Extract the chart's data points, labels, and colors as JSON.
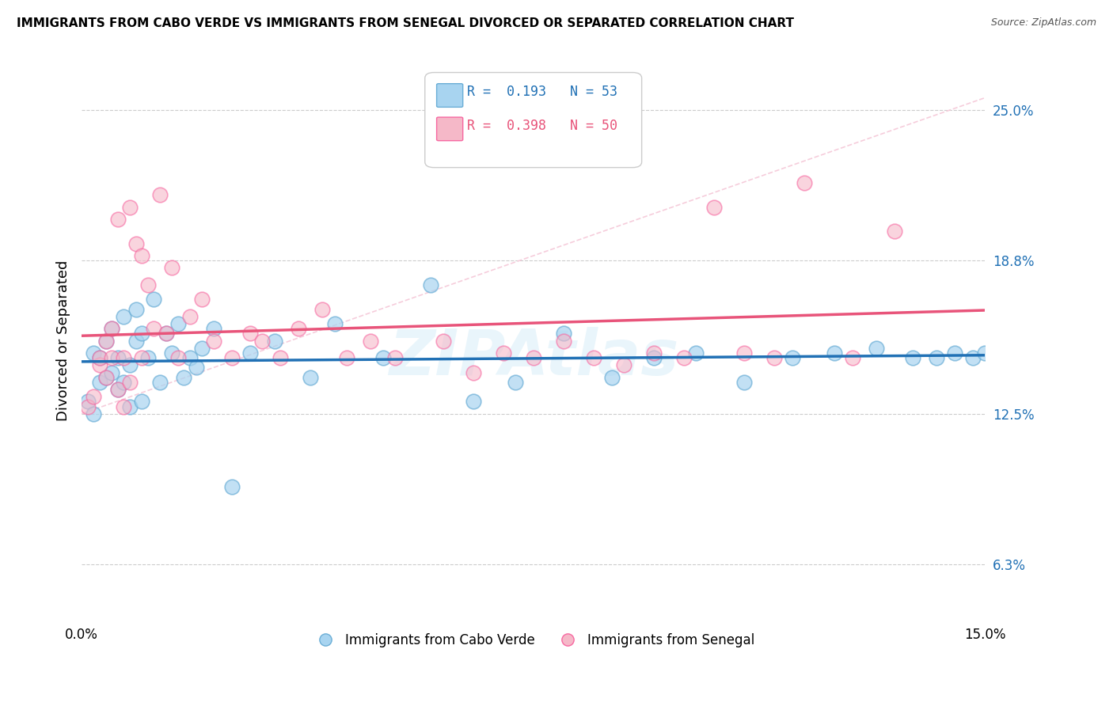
{
  "title": "IMMIGRANTS FROM CABO VERDE VS IMMIGRANTS FROM SENEGAL DIVORCED OR SEPARATED CORRELATION CHART",
  "source": "Source: ZipAtlas.com",
  "ylabel": "Divorced or Separated",
  "xmin": 0.0,
  "xmax": 0.15,
  "ymin": 0.04,
  "ymax": 0.27,
  "ytick_vals": [
    0.063,
    0.125,
    0.188,
    0.25
  ],
  "ytick_labels": [
    "6.3%",
    "12.5%",
    "18.8%",
    "25.0%"
  ],
  "watermark": "ZIPAtlas",
  "R_cabo": "0.193",
  "N_cabo": "53",
  "R_senegal": "0.398",
  "N_senegal": "50",
  "cabo_verde_x": [
    0.001,
    0.002,
    0.002,
    0.003,
    0.003,
    0.004,
    0.004,
    0.005,
    0.005,
    0.006,
    0.006,
    0.007,
    0.007,
    0.008,
    0.008,
    0.009,
    0.009,
    0.01,
    0.01,
    0.011,
    0.012,
    0.013,
    0.014,
    0.015,
    0.016,
    0.017,
    0.018,
    0.019,
    0.02,
    0.022,
    0.025,
    0.028,
    0.032,
    0.038,
    0.042,
    0.05,
    0.058,
    0.065,
    0.072,
    0.08,
    0.088,
    0.095,
    0.102,
    0.11,
    0.118,
    0.125,
    0.132,
    0.138,
    0.142,
    0.145,
    0.148,
    0.15,
    0.152
  ],
  "cabo_verde_y": [
    0.13,
    0.125,
    0.15,
    0.148,
    0.138,
    0.155,
    0.14,
    0.16,
    0.142,
    0.148,
    0.135,
    0.165,
    0.138,
    0.145,
    0.128,
    0.168,
    0.155,
    0.158,
    0.13,
    0.148,
    0.172,
    0.138,
    0.158,
    0.15,
    0.162,
    0.14,
    0.148,
    0.144,
    0.152,
    0.16,
    0.095,
    0.15,
    0.155,
    0.14,
    0.162,
    0.148,
    0.178,
    0.13,
    0.138,
    0.158,
    0.14,
    0.148,
    0.15,
    0.138,
    0.148,
    0.15,
    0.152,
    0.148,
    0.148,
    0.15,
    0.148,
    0.15,
    0.15
  ],
  "senegal_x": [
    0.001,
    0.002,
    0.003,
    0.003,
    0.004,
    0.004,
    0.005,
    0.005,
    0.006,
    0.006,
    0.007,
    0.007,
    0.008,
    0.008,
    0.009,
    0.01,
    0.01,
    0.011,
    0.012,
    0.013,
    0.014,
    0.015,
    0.016,
    0.018,
    0.02,
    0.022,
    0.025,
    0.028,
    0.03,
    0.033,
    0.036,
    0.04,
    0.044,
    0.048,
    0.052,
    0.06,
    0.065,
    0.07,
    0.075,
    0.08,
    0.085,
    0.09,
    0.095,
    0.1,
    0.105,
    0.11,
    0.115,
    0.12,
    0.128,
    0.135
  ],
  "senegal_y": [
    0.128,
    0.132,
    0.145,
    0.148,
    0.14,
    0.155,
    0.148,
    0.16,
    0.135,
    0.205,
    0.128,
    0.148,
    0.138,
    0.21,
    0.195,
    0.148,
    0.19,
    0.178,
    0.16,
    0.215,
    0.158,
    0.185,
    0.148,
    0.165,
    0.172,
    0.155,
    0.148,
    0.158,
    0.155,
    0.148,
    0.16,
    0.168,
    0.148,
    0.155,
    0.148,
    0.155,
    0.142,
    0.15,
    0.148,
    0.155,
    0.148,
    0.145,
    0.15,
    0.148,
    0.21,
    0.15,
    0.148,
    0.22,
    0.148,
    0.2
  ],
  "cabo_verde_color": "#a8d4f0",
  "senegal_color": "#f5b8c8",
  "cabo_verde_edge_color": "#6baed6",
  "senegal_edge_color": "#f768a1",
  "cabo_verde_line_color": "#2171b5",
  "senegal_line_color": "#e8547a",
  "dashed_line_color": "#f5c8d8",
  "background_color": "#ffffff",
  "grid_color": "#cccccc"
}
